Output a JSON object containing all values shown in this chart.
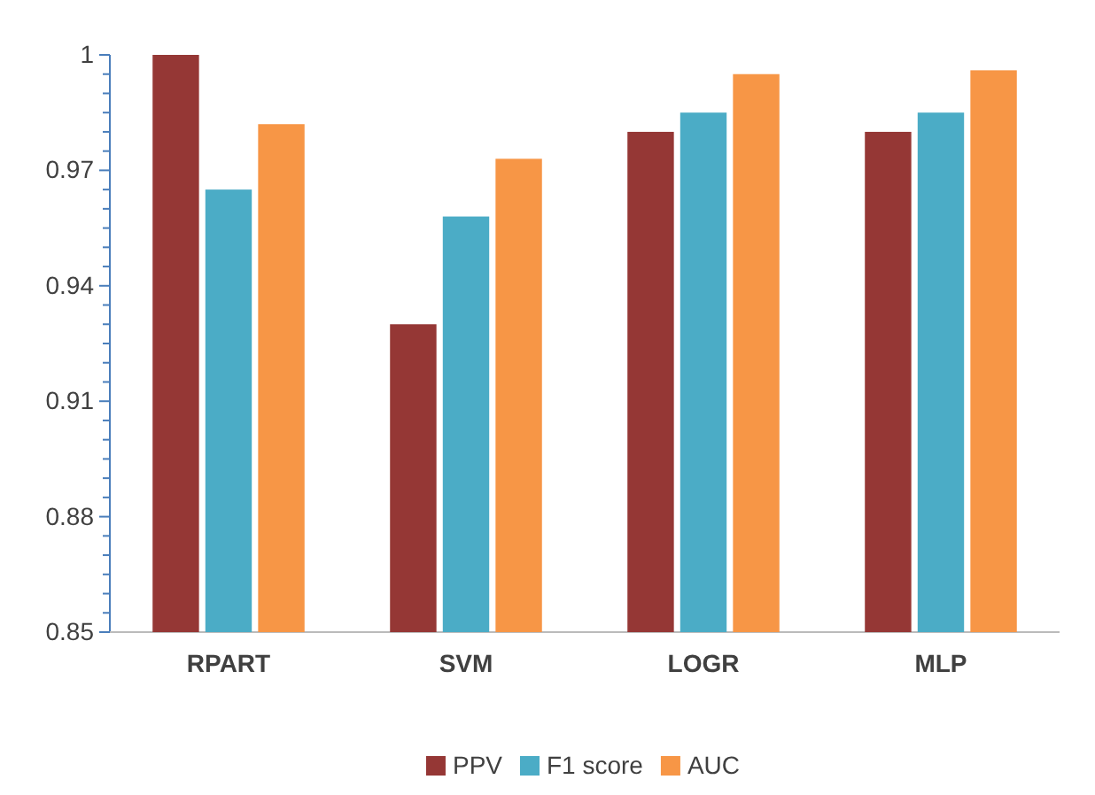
{
  "chart_data": {
    "type": "bar",
    "categories": [
      "RPART",
      "SVM",
      "LOGR",
      "MLP"
    ],
    "series": [
      {
        "name": "PPV",
        "color": "#953735",
        "values": [
          1.0,
          0.93,
          0.98,
          0.98
        ]
      },
      {
        "name": "F1 score",
        "color": "#4bacc6",
        "values": [
          0.965,
          0.958,
          0.985,
          0.985
        ]
      },
      {
        "name": "AUC",
        "color": "#f79646",
        "values": [
          0.982,
          0.973,
          0.995,
          0.996
        ]
      }
    ],
    "ylim": [
      0.85,
      1.0
    ],
    "yticks": [
      0.85,
      {
        "value": 0.855,
        "label": null
      },
      {
        "value": 0.86,
        "label": null
      },
      {
        "value": 0.865,
        "label": null
      },
      {
        "value": 0.87,
        "label": null
      },
      {
        "value": 0.875,
        "label": null
      },
      0.88,
      {
        "value": 0.885,
        "label": null
      },
      {
        "value": 0.89,
        "label": null
      },
      {
        "value": 0.895,
        "label": null
      },
      {
        "value": 0.9,
        "label": null
      },
      {
        "value": 0.905,
        "label": null
      },
      0.91,
      {
        "value": 0.915,
        "label": null
      },
      {
        "value": 0.92,
        "label": null
      },
      {
        "value": 0.925,
        "label": null
      },
      {
        "value": 0.93,
        "label": null
      },
      {
        "value": 0.935,
        "label": null
      },
      0.94,
      {
        "value": 0.945,
        "label": null
      },
      {
        "value": 0.95,
        "label": null
      },
      {
        "value": 0.955,
        "label": null
      },
      {
        "value": 0.96,
        "label": null
      },
      {
        "value": 0.965,
        "label": null
      },
      0.97,
      {
        "value": 0.975,
        "label": null
      },
      {
        "value": 0.98,
        "label": null
      },
      {
        "value": 0.985,
        "label": null
      },
      {
        "value": 0.99,
        "label": null
      },
      {
        "value": 0.995,
        "label": null
      },
      {
        "value": 1,
        "label": "1"
      }
    ],
    "grid": false,
    "legend": "bottom"
  }
}
